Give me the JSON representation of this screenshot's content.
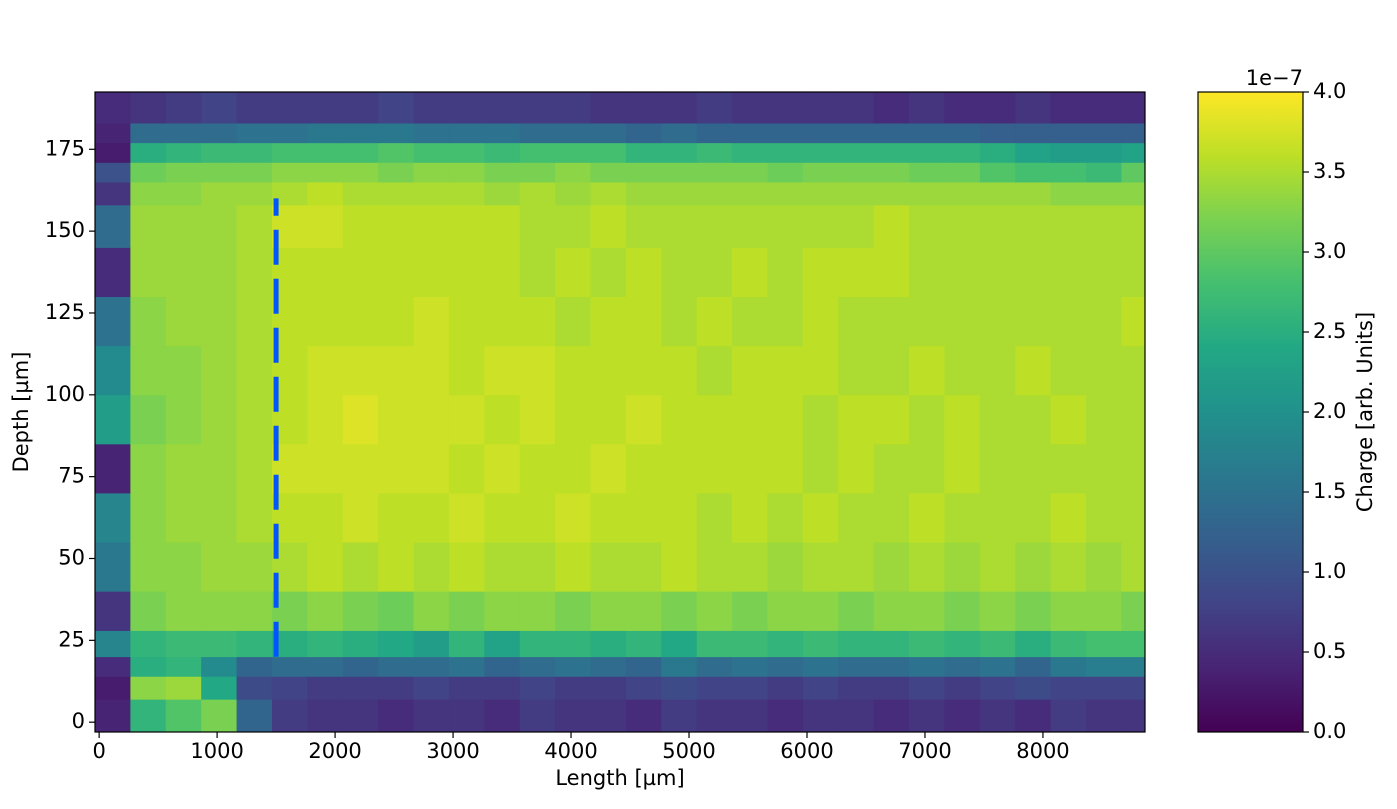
{
  "chart_data": {
    "type": "heatmap",
    "xlabel": "Length [µm]",
    "ylabel": "Depth [µm]",
    "colorbar_label": "Charge [arb. Units]",
    "colorbar_offset": "1e−7",
    "colormap": "viridis",
    "xlim": [
      -35,
      8865
    ],
    "ylim": [
      -3,
      192.5
    ],
    "zlim": [
      0,
      4
    ],
    "xticks": [
      0,
      1000,
      2000,
      3000,
      4000,
      5000,
      6000,
      7000,
      8000
    ],
    "yticks": [
      0,
      25,
      50,
      75,
      100,
      125,
      150,
      175
    ],
    "zticks": [
      {
        "value": 0,
        "label": "0.0"
      },
      0.5,
      {
        "value": 1,
        "label": "1.0"
      },
      1.5,
      {
        "value": 2,
        "label": "2.0"
      },
      2.5,
      {
        "value": 3,
        "label": "3.0"
      },
      3.5,
      {
        "value": 4,
        "label": "4.0"
      }
    ],
    "xbins": [
      -35,
      265,
      565,
      865,
      1165,
      1465,
      1765,
      2065,
      2365,
      2665,
      2965,
      3265,
      3565,
      3865,
      4165,
      4465,
      4765,
      5065,
      5365,
      5665,
      5965,
      6265,
      6565,
      6865,
      7165,
      7465,
      7765,
      8065,
      8365,
      8665,
      8865
    ],
    "ybins": [
      -3,
      7,
      14,
      20,
      28,
      40,
      55,
      70,
      85,
      100,
      115,
      130,
      145,
      158,
      165,
      171,
      177,
      183,
      192.5
    ],
    "z": [
      [
        0.4,
        2.6,
        2.9,
        3.2,
        1.3,
        0.7,
        0.6,
        0.6,
        0.5,
        0.6,
        0.6,
        0.5,
        0.7,
        0.6,
        0.6,
        0.5,
        0.7,
        0.6,
        0.6,
        0.5,
        0.6,
        0.6,
        0.5,
        0.6,
        0.5,
        0.6,
        0.5,
        0.7,
        0.6,
        0.6
      ],
      [
        0.3,
        3.3,
        3.4,
        2.4,
        0.9,
        0.8,
        0.7,
        0.7,
        0.7,
        0.8,
        0.7,
        0.7,
        0.8,
        0.7,
        0.7,
        0.8,
        0.9,
        0.8,
        0.8,
        0.7,
        0.8,
        0.7,
        0.7,
        0.8,
        0.7,
        0.8,
        0.9,
        0.8,
        0.8,
        0.8
      ],
      [
        0.5,
        2.5,
        2.6,
        1.9,
        1.3,
        1.4,
        1.4,
        1.3,
        1.4,
        1.4,
        1.5,
        1.3,
        1.4,
        1.5,
        1.4,
        1.3,
        1.6,
        1.4,
        1.5,
        1.4,
        1.5,
        1.4,
        1.4,
        1.5,
        1.4,
        1.5,
        1.3,
        1.6,
        1.7,
        1.7
      ],
      [
        1.8,
        2.6,
        2.7,
        2.7,
        2.6,
        2.5,
        2.6,
        2.5,
        2.4,
        2.2,
        2.6,
        2.3,
        2.6,
        2.6,
        2.5,
        2.6,
        2.4,
        2.7,
        2.7,
        2.6,
        2.7,
        2.6,
        2.6,
        2.7,
        2.6,
        2.7,
        2.5,
        2.7,
        2.8,
        2.8
      ],
      [
        0.6,
        3.2,
        3.3,
        3.3,
        3.3,
        3.2,
        3.3,
        3.2,
        3.1,
        3.3,
        3.2,
        3.3,
        3.3,
        3.2,
        3.3,
        3.3,
        3.2,
        3.3,
        3.2,
        3.3,
        3.3,
        3.2,
        3.3,
        3.3,
        3.2,
        3.3,
        3.2,
        3.3,
        3.3,
        3.2
      ],
      [
        1.6,
        3.3,
        3.3,
        3.4,
        3.4,
        3.5,
        3.6,
        3.5,
        3.6,
        3.5,
        3.6,
        3.5,
        3.5,
        3.6,
        3.5,
        3.5,
        3.6,
        3.5,
        3.5,
        3.4,
        3.5,
        3.5,
        3.4,
        3.5,
        3.4,
        3.5,
        3.4,
        3.5,
        3.4,
        3.5
      ],
      [
        1.8,
        3.3,
        3.4,
        3.4,
        3.5,
        3.6,
        3.6,
        3.7,
        3.6,
        3.6,
        3.7,
        3.6,
        3.6,
        3.7,
        3.6,
        3.6,
        3.6,
        3.5,
        3.6,
        3.5,
        3.6,
        3.5,
        3.5,
        3.6,
        3.5,
        3.5,
        3.5,
        3.6,
        3.5,
        3.5
      ],
      [
        0.4,
        3.3,
        3.4,
        3.4,
        3.5,
        3.7,
        3.7,
        3.7,
        3.7,
        3.7,
        3.6,
        3.7,
        3.6,
        3.6,
        3.7,
        3.6,
        3.6,
        3.6,
        3.6,
        3.6,
        3.5,
        3.6,
        3.5,
        3.5,
        3.6,
        3.5,
        3.5,
        3.5,
        3.5,
        3.5
      ],
      [
        2.2,
        3.2,
        3.3,
        3.4,
        3.5,
        3.6,
        3.7,
        3.8,
        3.7,
        3.7,
        3.7,
        3.6,
        3.7,
        3.6,
        3.6,
        3.7,
        3.6,
        3.6,
        3.6,
        3.6,
        3.5,
        3.6,
        3.6,
        3.5,
        3.6,
        3.5,
        3.5,
        3.6,
        3.5,
        3.5
      ],
      [
        1.9,
        3.3,
        3.3,
        3.4,
        3.5,
        3.6,
        3.7,
        3.7,
        3.7,
        3.7,
        3.6,
        3.7,
        3.7,
        3.6,
        3.6,
        3.6,
        3.6,
        3.5,
        3.6,
        3.6,
        3.6,
        3.5,
        3.5,
        3.6,
        3.5,
        3.5,
        3.6,
        3.5,
        3.5,
        3.5
      ],
      [
        1.5,
        3.3,
        3.4,
        3.4,
        3.5,
        3.6,
        3.6,
        3.6,
        3.6,
        3.7,
        3.6,
        3.6,
        3.6,
        3.5,
        3.6,
        3.6,
        3.5,
        3.6,
        3.5,
        3.5,
        3.6,
        3.5,
        3.5,
        3.5,
        3.5,
        3.5,
        3.5,
        3.5,
        3.5,
        3.6
      ],
      [
        0.5,
        3.4,
        3.4,
        3.4,
        3.5,
        3.6,
        3.6,
        3.6,
        3.6,
        3.6,
        3.6,
        3.6,
        3.5,
        3.6,
        3.5,
        3.6,
        3.5,
        3.5,
        3.6,
        3.5,
        3.6,
        3.6,
        3.6,
        3.5,
        3.5,
        3.5,
        3.5,
        3.5,
        3.5,
        3.5
      ],
      [
        1.4,
        3.4,
        3.4,
        3.4,
        3.5,
        3.7,
        3.7,
        3.6,
        3.6,
        3.6,
        3.6,
        3.6,
        3.5,
        3.5,
        3.6,
        3.5,
        3.5,
        3.5,
        3.5,
        3.5,
        3.5,
        3.5,
        3.6,
        3.5,
        3.5,
        3.5,
        3.5,
        3.5,
        3.5,
        3.5
      ],
      [
        0.6,
        3.3,
        3.3,
        3.4,
        3.4,
        3.5,
        3.6,
        3.5,
        3.5,
        3.5,
        3.5,
        3.4,
        3.5,
        3.4,
        3.5,
        3.4,
        3.4,
        3.4,
        3.4,
        3.4,
        3.4,
        3.4,
        3.4,
        3.4,
        3.4,
        3.4,
        3.4,
        3.3,
        3.3,
        3.3
      ],
      [
        1.0,
        3.1,
        3.2,
        3.2,
        3.2,
        3.3,
        3.3,
        3.3,
        3.2,
        3.3,
        3.3,
        3.2,
        3.2,
        3.3,
        3.2,
        3.2,
        3.2,
        3.2,
        3.2,
        3.1,
        3.2,
        3.2,
        3.2,
        3.1,
        3.1,
        2.9,
        2.8,
        2.8,
        2.7,
        3.0
      ],
      [
        0.3,
        2.5,
        2.6,
        2.7,
        2.7,
        2.8,
        2.8,
        2.8,
        2.9,
        2.8,
        2.8,
        2.7,
        2.8,
        2.8,
        2.8,
        2.6,
        2.6,
        2.7,
        2.6,
        2.6,
        2.6,
        2.6,
        2.6,
        2.6,
        2.6,
        2.5,
        2.3,
        2.2,
        2.2,
        2.3
      ],
      [
        0.4,
        1.4,
        1.4,
        1.4,
        1.5,
        1.5,
        1.6,
        1.6,
        1.6,
        1.5,
        1.5,
        1.5,
        1.4,
        1.4,
        1.4,
        1.3,
        1.4,
        1.3,
        1.3,
        1.3,
        1.3,
        1.3,
        1.3,
        1.3,
        1.3,
        1.2,
        1.2,
        1.2,
        1.2,
        1.2
      ],
      [
        0.5,
        0.6,
        0.7,
        0.8,
        0.7,
        0.7,
        0.7,
        0.7,
        0.8,
        0.7,
        0.7,
        0.7,
        0.7,
        0.7,
        0.6,
        0.6,
        0.6,
        0.7,
        0.6,
        0.6,
        0.6,
        0.6,
        0.5,
        0.6,
        0.5,
        0.5,
        0.6,
        0.5,
        0.5,
        0.5
      ]
    ],
    "vline": {
      "x": 1500,
      "ymin": 20,
      "ymax": 160,
      "color": "#0055ff"
    }
  }
}
